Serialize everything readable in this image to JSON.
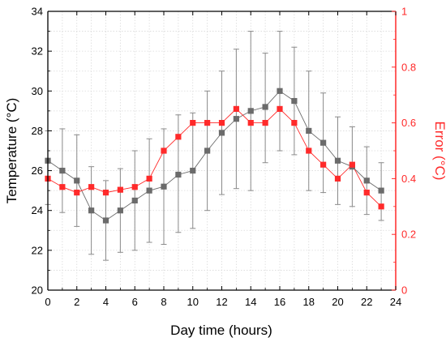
{
  "chart_data": {
    "type": "scatter",
    "xlabel": "Day time (hours)",
    "ylabel": "Temperature (°C)",
    "y2label": "Error (°C)",
    "xlim": [
      0,
      24
    ],
    "ylim": [
      20,
      34
    ],
    "y2lim": [
      0,
      1
    ],
    "x_ticks": [
      0,
      2,
      4,
      6,
      8,
      10,
      12,
      14,
      16,
      18,
      20,
      22,
      24
    ],
    "y_ticks": [
      20,
      22,
      24,
      26,
      28,
      30,
      32,
      34
    ],
    "y2_ticks": [
      0,
      0.2,
      0.4,
      0.6,
      0.8,
      1
    ],
    "grid": true,
    "legend": "none",
    "series": [
      {
        "axis": "left",
        "color": "#6b6b6b",
        "x": [
          0,
          1,
          2,
          3,
          4,
          5,
          6,
          7,
          8,
          9,
          10,
          11,
          12,
          13,
          14,
          15,
          16,
          17,
          18,
          19,
          20,
          21,
          22,
          23
        ],
        "y": [
          26.5,
          26.0,
          25.5,
          24.0,
          23.5,
          24.0,
          24.5,
          25.0,
          25.2,
          25.8,
          26.0,
          27.0,
          27.9,
          28.6,
          29.0,
          29.2,
          30.0,
          29.5,
          28.0,
          27.4,
          26.5,
          26.2,
          25.5,
          25.0
        ],
        "err_low": [
          24.3,
          23.9,
          23.2,
          21.8,
          21.5,
          21.9,
          22.0,
          22.4,
          22.3,
          22.9,
          23.1,
          24.0,
          24.8,
          25.1,
          25.0,
          26.4,
          27.0,
          26.8,
          25.0,
          24.9,
          24.3,
          24.2,
          23.8,
          23.5
        ],
        "err_high": [
          28.0,
          28.1,
          27.8,
          26.2,
          25.5,
          26.1,
          27.0,
          27.6,
          28.1,
          28.8,
          28.9,
          30.0,
          31.0,
          32.1,
          33.0,
          31.9,
          33.0,
          32.2,
          31.0,
          29.9,
          28.7,
          28.2,
          27.2,
          26.4
        ]
      },
      {
        "axis": "right",
        "color": "#ff2a2a",
        "x": [
          0,
          1,
          2,
          3,
          4,
          5,
          6,
          7,
          8,
          9,
          10,
          11,
          12,
          13,
          14,
          15,
          16,
          17,
          18,
          19,
          20,
          21,
          22,
          23
        ],
        "y": [
          0.4,
          0.37,
          0.35,
          0.37,
          0.35,
          0.36,
          0.37,
          0.4,
          0.5,
          0.55,
          0.6,
          0.6,
          0.6,
          0.65,
          0.6,
          0.6,
          0.65,
          0.6,
          0.5,
          0.45,
          0.4,
          0.45,
          0.35,
          0.3
        ]
      }
    ]
  }
}
